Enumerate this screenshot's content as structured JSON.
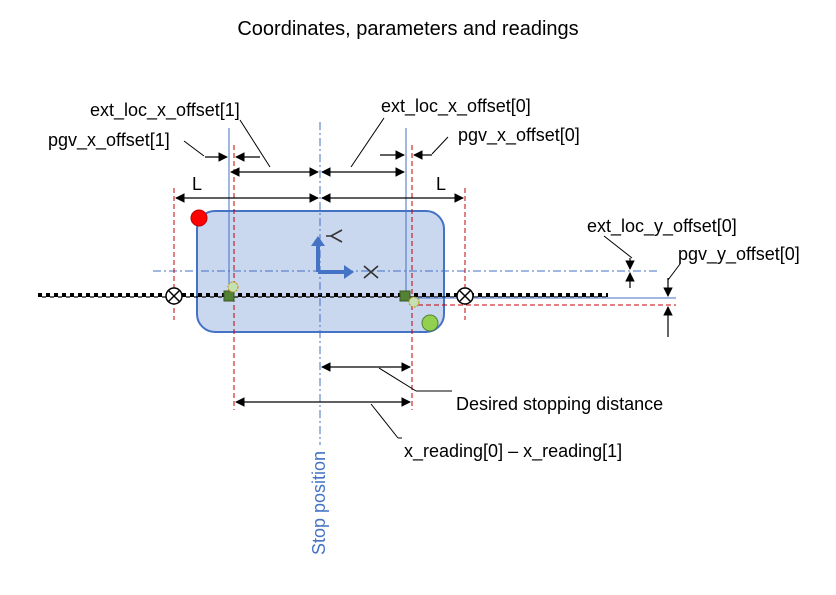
{
  "title": "Coordinates, parameters and readings",
  "labels": {
    "ext_loc_x_offset_1": "ext_loc_x_offset[1]",
    "ext_loc_x_offset_0": "ext_loc_x_offset[0]",
    "pgv_x_offset_1": "pgv_x_offset[1]",
    "pgv_x_offset_0": "pgv_x_offset[0]",
    "L_left": "L",
    "L_right": "L",
    "ext_loc_y_offset_0": "ext_loc_y_offset[0]",
    "pgv_y_offset_0": "pgv_y_offset[0]",
    "desired_stopping_distance": "Desired stopping distance",
    "x_reading_diff": "x_reading[0] – x_reading[1]",
    "stop_position": "Stop position"
  },
  "colors": {
    "vehicle_fill": "#c9d7ef",
    "vehicle_stroke": "#4472c4",
    "guide_red": "#c00000",
    "guide_blue": "#4472c4",
    "axis_blue": "#4472c4",
    "front_marker": "#ff0000",
    "rear_marker": "#92d050",
    "sensor": "#548235"
  }
}
